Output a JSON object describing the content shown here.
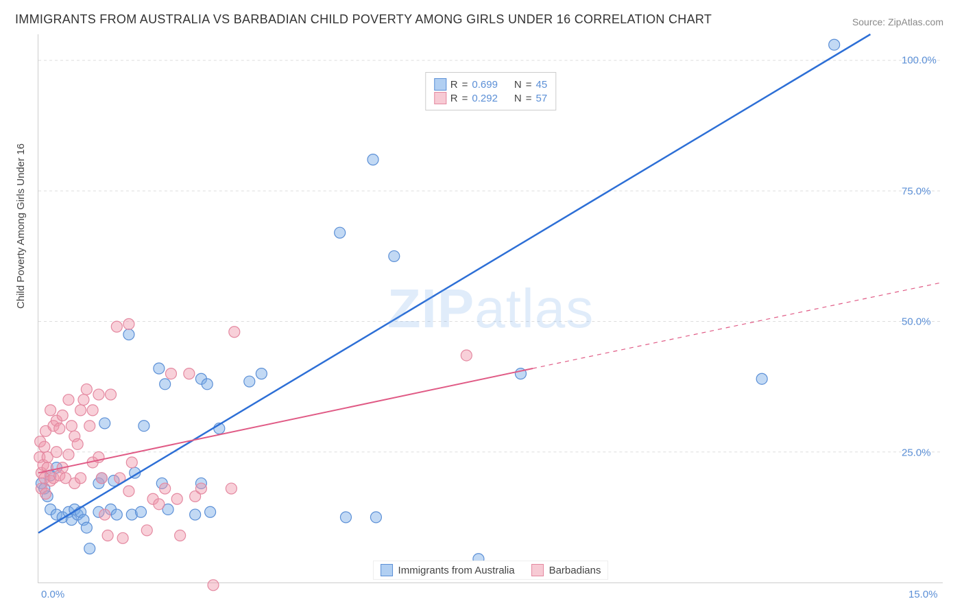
{
  "title": "IMMIGRANTS FROM AUSTRALIA VS BARBADIAN CHILD POVERTY AMONG GIRLS UNDER 16 CORRELATION CHART",
  "source_prefix": "Source: ",
  "source_name": "ZipAtlas.com",
  "y_axis_label": "Child Poverty Among Girls Under 16",
  "watermark_a": "ZIP",
  "watermark_b": "atlas",
  "chart": {
    "type": "scatter",
    "xlim": [
      0,
      15
    ],
    "ylim": [
      0,
      105
    ],
    "x_ticks": [
      {
        "v": 0.0,
        "label": "0.0%"
      },
      {
        "v": 15.0,
        "label": "15.0%"
      }
    ],
    "y_ticks": [
      {
        "v": 25.0,
        "label": "25.0%"
      },
      {
        "v": 50.0,
        "label": "50.0%"
      },
      {
        "v": 75.0,
        "label": "75.0%"
      },
      {
        "v": 100.0,
        "label": "100.0%"
      }
    ],
    "grid_color": "#dddddd",
    "background_color": "#ffffff",
    "marker_radius": 8,
    "marker_stroke_width": 1.2,
    "trend_line_width_blue": 2.5,
    "trend_line_width_pink": 2,
    "series": [
      {
        "name": "Immigrants from Australia",
        "color_fill": "rgba(120,170,230,0.45)",
        "color_stroke": "#5b8fd6",
        "trend_color": "#2d6fd6",
        "trend": {
          "x1": 0.0,
          "y1": 9.5,
          "x2": 13.8,
          "y2": 105.0
        },
        "points": [
          [
            0.05,
            19
          ],
          [
            0.1,
            18
          ],
          [
            0.15,
            16.5
          ],
          [
            0.2,
            20.5
          ],
          [
            0.2,
            14
          ],
          [
            0.3,
            22
          ],
          [
            0.3,
            13
          ],
          [
            0.4,
            12.5
          ],
          [
            0.5,
            13.5
          ],
          [
            0.55,
            12
          ],
          [
            0.6,
            14
          ],
          [
            0.65,
            13
          ],
          [
            0.7,
            13.5
          ],
          [
            0.75,
            12
          ],
          [
            0.8,
            10.5
          ],
          [
            0.85,
            6.5
          ],
          [
            1.0,
            13.5
          ],
          [
            1.0,
            19
          ],
          [
            1.05,
            20
          ],
          [
            1.1,
            30.5
          ],
          [
            1.2,
            14
          ],
          [
            1.25,
            19.5
          ],
          [
            1.3,
            13
          ],
          [
            1.5,
            47.5
          ],
          [
            1.55,
            13
          ],
          [
            1.6,
            21
          ],
          [
            1.7,
            13.5
          ],
          [
            1.75,
            30
          ],
          [
            2.0,
            41
          ],
          [
            2.05,
            19
          ],
          [
            2.1,
            38
          ],
          [
            2.15,
            14
          ],
          [
            2.6,
            13
          ],
          [
            2.7,
            39
          ],
          [
            2.7,
            19
          ],
          [
            2.8,
            38
          ],
          [
            2.85,
            13.5
          ],
          [
            3.0,
            29.5
          ],
          [
            3.5,
            38.5
          ],
          [
            3.7,
            40
          ],
          [
            5.0,
            67
          ],
          [
            5.1,
            12.5
          ],
          [
            5.6,
            12.5
          ],
          [
            5.55,
            81
          ],
          [
            5.9,
            62.5
          ],
          [
            7.3,
            4.5
          ],
          [
            8.0,
            40
          ],
          [
            12.0,
            39
          ],
          [
            13.2,
            103
          ]
        ]
      },
      {
        "name": "Barbadians",
        "color_fill": "rgba(240,150,170,0.45)",
        "color_stroke": "#e488a0",
        "trend_color": "#e05a85",
        "trend": {
          "x1": 0.0,
          "y1": 21.0,
          "x2": 8.2,
          "y2": 41.0
        },
        "trend_ext": {
          "x1": 8.2,
          "y1": 41.0,
          "x2": 15.0,
          "y2": 57.5
        },
        "points": [
          [
            0.02,
            24
          ],
          [
            0.03,
            27
          ],
          [
            0.05,
            21
          ],
          [
            0.05,
            18
          ],
          [
            0.08,
            22.5
          ],
          [
            0.1,
            20
          ],
          [
            0.1,
            26
          ],
          [
            0.12,
            29
          ],
          [
            0.12,
            17
          ],
          [
            0.15,
            24
          ],
          [
            0.15,
            22
          ],
          [
            0.2,
            19.5
          ],
          [
            0.2,
            33
          ],
          [
            0.25,
            30
          ],
          [
            0.25,
            20
          ],
          [
            0.3,
            25
          ],
          [
            0.3,
            31
          ],
          [
            0.35,
            29.5
          ],
          [
            0.35,
            20.5
          ],
          [
            0.4,
            22
          ],
          [
            0.4,
            32
          ],
          [
            0.45,
            20
          ],
          [
            0.5,
            35
          ],
          [
            0.5,
            24.5
          ],
          [
            0.55,
            30
          ],
          [
            0.6,
            28
          ],
          [
            0.6,
            19
          ],
          [
            0.65,
            26.5
          ],
          [
            0.7,
            33
          ],
          [
            0.7,
            20
          ],
          [
            0.75,
            35
          ],
          [
            0.8,
            37
          ],
          [
            0.85,
            30
          ],
          [
            0.9,
            23
          ],
          [
            0.9,
            33
          ],
          [
            1.0,
            36
          ],
          [
            1.0,
            24
          ],
          [
            1.05,
            20
          ],
          [
            1.1,
            13
          ],
          [
            1.15,
            9
          ],
          [
            1.2,
            36
          ],
          [
            1.3,
            49
          ],
          [
            1.35,
            20
          ],
          [
            1.4,
            8.5
          ],
          [
            1.5,
            17.5
          ],
          [
            1.5,
            49.5
          ],
          [
            1.55,
            23
          ],
          [
            1.8,
            10
          ],
          [
            1.9,
            16
          ],
          [
            2.0,
            15
          ],
          [
            2.1,
            18
          ],
          [
            2.2,
            40
          ],
          [
            2.3,
            16
          ],
          [
            2.35,
            9
          ],
          [
            2.5,
            40
          ],
          [
            2.6,
            16.5
          ],
          [
            2.7,
            18
          ],
          [
            2.9,
            -0.5
          ],
          [
            3.2,
            18
          ],
          [
            3.25,
            48
          ],
          [
            7.1,
            43.5
          ]
        ]
      }
    ],
    "stats_panel": [
      {
        "color": "blue",
        "R": "0.699",
        "N": "45"
      },
      {
        "color": "pink",
        "R": "0.292",
        "N": "57"
      }
    ],
    "stat_label_R": "R",
    "stat_label_N": "N",
    "stat_eq": "="
  }
}
